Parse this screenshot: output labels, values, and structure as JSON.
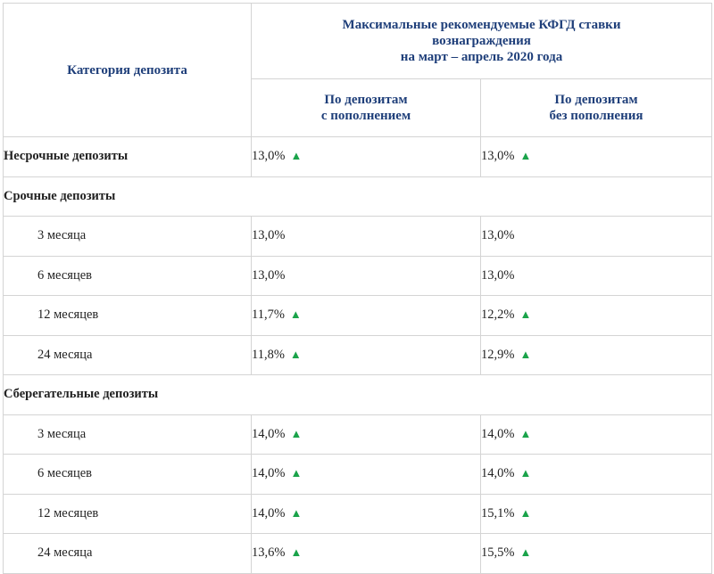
{
  "header": {
    "category": "Категория депозита",
    "main_title_lines": [
      "Максимальные рекомендуемые КФГД ставки",
      "вознаграждения",
      "на март – апрель 2020 года"
    ],
    "col_with": [
      "По депозитам",
      "с пополнением"
    ],
    "col_without": [
      "По депозитам",
      "без пополнения"
    ]
  },
  "up_icon": "▲",
  "rows": [
    {
      "label": "Несрочные депозиты",
      "with": "13,0%",
      "without": "13,0%"
    },
    {
      "label": "Срочные депозиты"
    },
    {
      "label": "3 месяца",
      "with": "13,0%",
      "without": "13,0%"
    },
    {
      "label": "6 месяцев",
      "with": "13,0%",
      "without": "13,0%"
    },
    {
      "label": "12 месяцев",
      "with": "11,7%",
      "without": "12,2%"
    },
    {
      "label": "24 месяца",
      "with": "11,8%",
      "without": "12,9%"
    },
    {
      "label": "Сберегательные депозиты"
    },
    {
      "label": "3 месяца",
      "with": "14,0%",
      "without": "14,0%"
    },
    {
      "label": "6 месяцев",
      "with": "14,0%",
      "without": "14,0%"
    },
    {
      "label": "12 месяцев",
      "with": "14,0%",
      "without": "15,1%"
    },
    {
      "label": "24 месяца",
      "with": "13,6%",
      "without": "15,5%"
    }
  ]
}
